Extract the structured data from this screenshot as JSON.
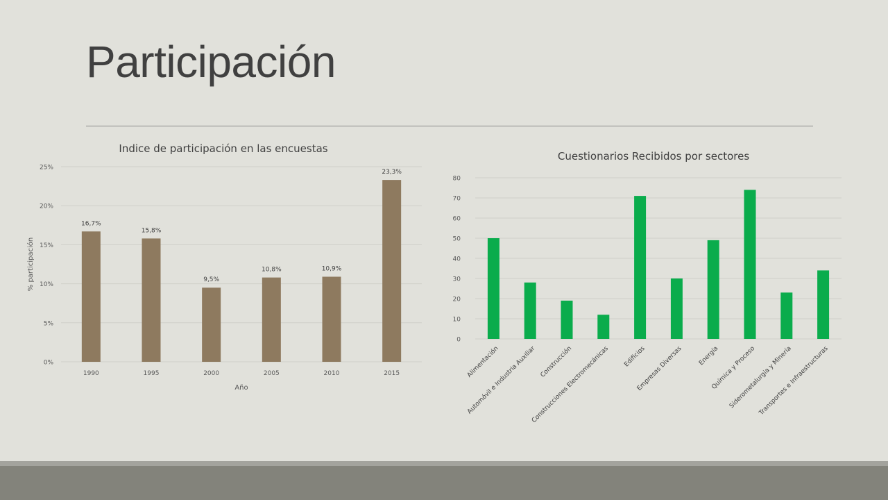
{
  "slide": {
    "title": "Participación"
  },
  "chart_data": [
    {
      "type": "bar",
      "title": "Indice de participación en las encuestas",
      "xlabel": "Año",
      "ylabel": "% participación",
      "categories": [
        "1990",
        "1995",
        "2000",
        "2005",
        "2010",
        "2015"
      ],
      "values": [
        16.7,
        15.8,
        9.5,
        10.8,
        10.9,
        23.3
      ],
      "data_labels": [
        "16,7%",
        "15,8%",
        "9,5%",
        "10,8%",
        "10,9%",
        "23,3%"
      ],
      "ylim": [
        0,
        25
      ],
      "yticks": [
        0,
        5,
        10,
        15,
        20,
        25
      ],
      "ytick_labels": [
        "0%",
        "5%",
        "10%",
        "15%",
        "20%",
        "25%"
      ],
      "grid": true,
      "legend": "none",
      "color": "#8e7a5f"
    },
    {
      "type": "bar",
      "title": "Cuestionarios Recibidos por sectores",
      "xlabel": "",
      "ylabel": "",
      "categories": [
        "Alimentación",
        "Automóvil e Industria Auxiliar",
        "Construcción",
        "Construcciones Electromecánicas",
        "Edificios",
        "Empresas Diversas",
        "Energía",
        "Química y Proceso",
        "Siderometalurgia y Minería",
        "Transportes e Infraestructuras"
      ],
      "values": [
        50,
        28,
        19,
        12,
        71,
        30,
        49,
        74,
        23,
        34
      ],
      "ylim": [
        0,
        80
      ],
      "yticks": [
        0,
        10,
        20,
        30,
        40,
        50,
        60,
        70,
        80
      ],
      "grid": true,
      "legend": "none",
      "color": "#0aac4c"
    }
  ]
}
